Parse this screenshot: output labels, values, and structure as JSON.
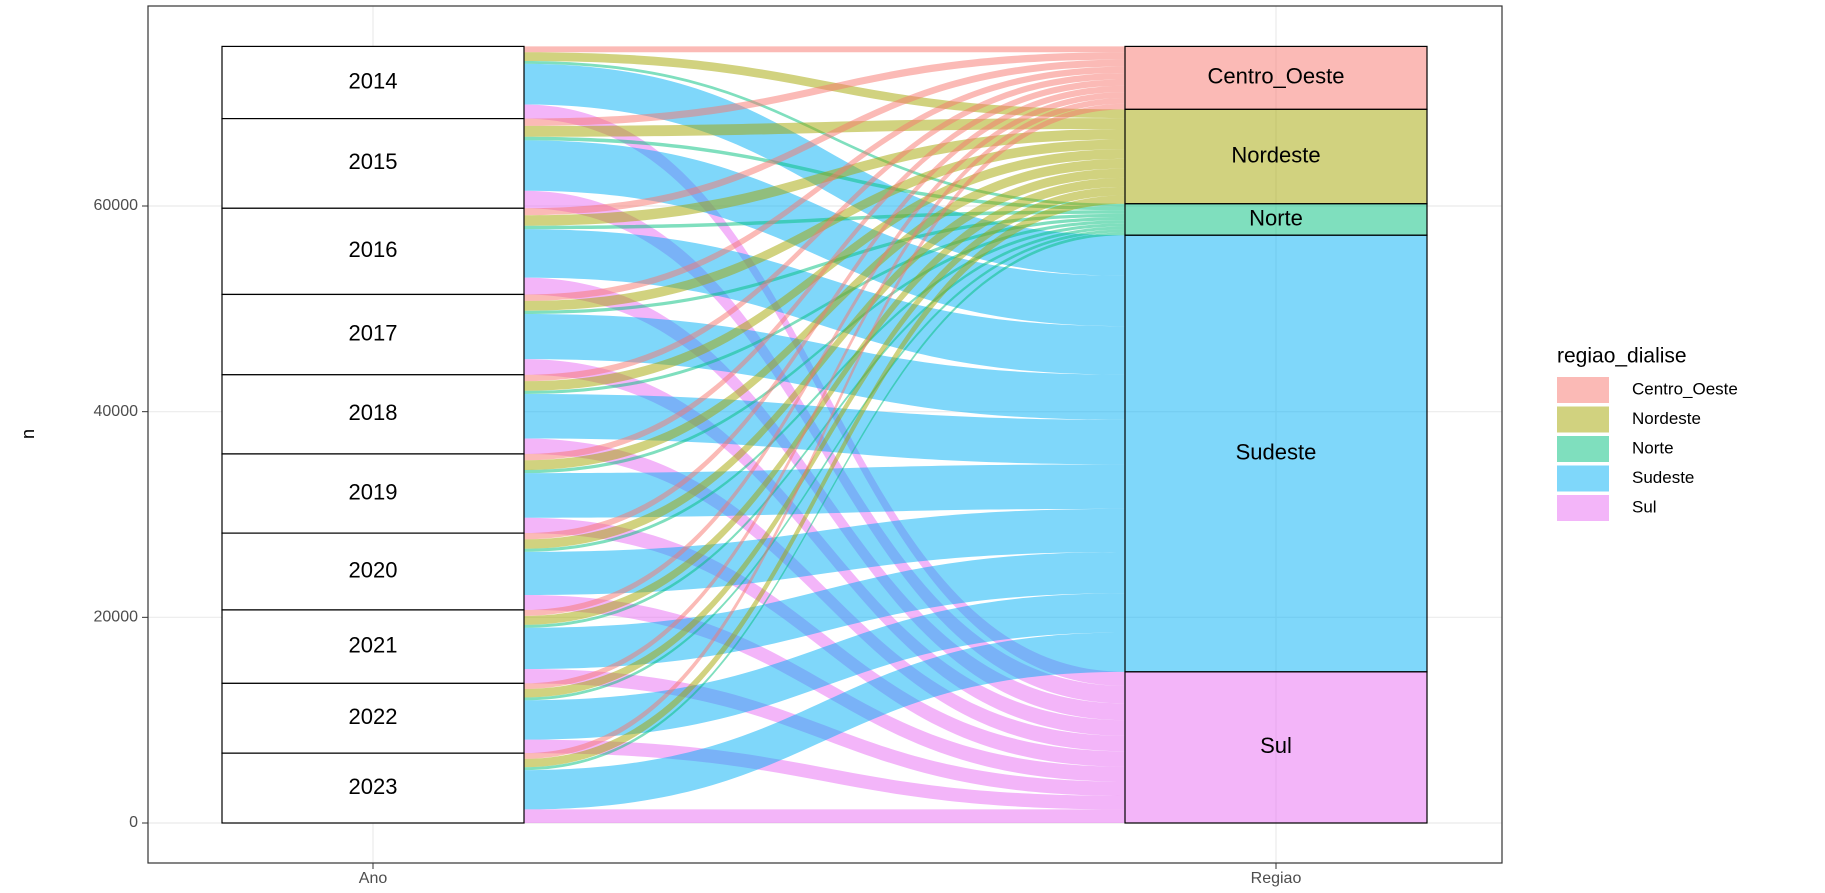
{
  "chart_data": {
    "type": "alluvial",
    "axes": [
      "Ano",
      "Regiao"
    ],
    "ylabel": "n",
    "categories": [
      "2014",
      "2015",
      "2016",
      "2017",
      "2018",
      "2019",
      "2020",
      "2021",
      "2022",
      "2023"
    ],
    "legend_title": "regiao_dialise",
    "series": [
      {
        "name": "Centro_Oeste",
        "color": "#F8766D",
        "values": [
          570,
          710,
          680,
          630,
          620,
          620,
          610,
          580,
          550,
          550
        ]
      },
      {
        "name": "Nordeste",
        "color": "#A3A500",
        "values": [
          850,
          1060,
          1020,
          950,
          940,
          940,
          910,
          870,
          820,
          820
        ]
      },
      {
        "name": "Norte",
        "color": "#00BF7D",
        "values": [
          280,
          350,
          340,
          320,
          310,
          310,
          300,
          290,
          280,
          280
        ]
      },
      {
        "name": "Sudeste",
        "color": "#00B0F6",
        "values": [
          3950,
          4900,
          4710,
          4390,
          4330,
          4330,
          4200,
          4010,
          3820,
          3820
        ]
      },
      {
        "name": "Sul",
        "color": "#E76BF3",
        "values": [
          1370,
          1700,
          1630,
          1520,
          1500,
          1500,
          1450,
          1390,
          1320,
          1320
        ]
      }
    ],
    "ylim": [
      -3890,
      79450
    ],
    "yticks": [
      0,
      20000,
      40000,
      60000
    ],
    "grid": true,
    "legend": "right"
  }
}
